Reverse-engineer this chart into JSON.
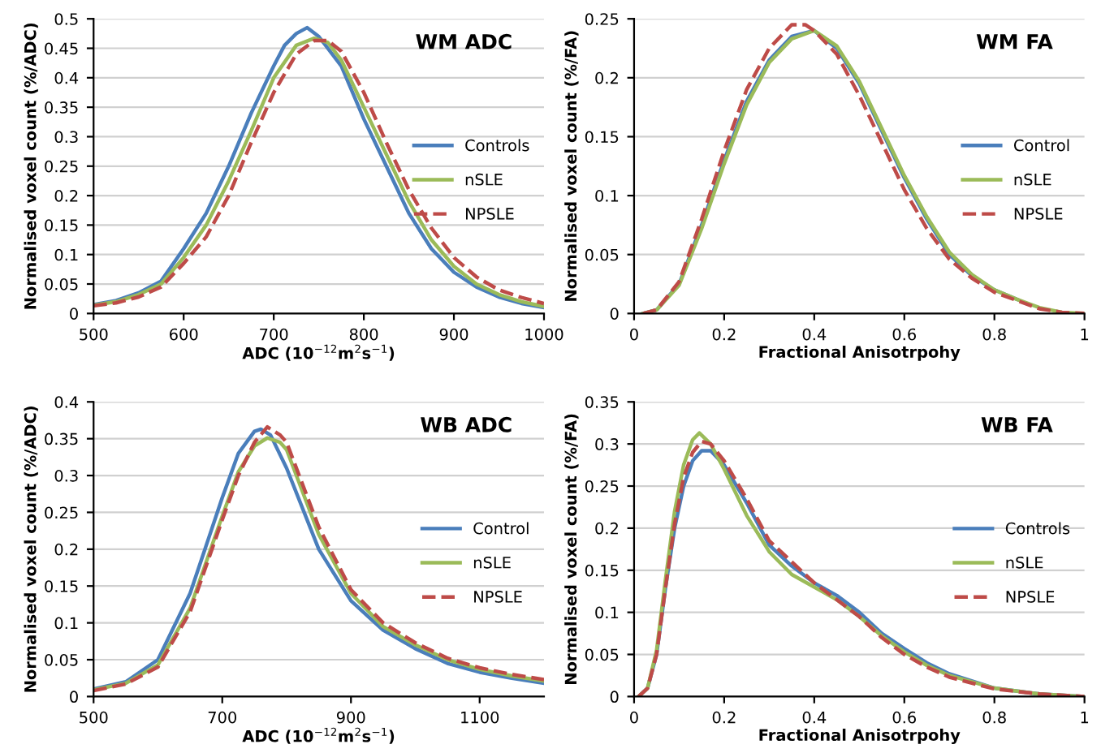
{
  "chart_data": [
    {
      "type": "line",
      "title": "WM ADC",
      "xlabel": "ADC (10$^{−12}$m$^{2}$s$^{−1}$)",
      "ylabel": "Normalised voxel count (%/ADC)",
      "xlim": [
        500,
        1000
      ],
      "xticks": [
        500,
        600,
        700,
        800,
        900,
        1000
      ],
      "ylim": [
        0,
        0.5
      ],
      "yticks": [
        0,
        0.05,
        0.1,
        0.15,
        0.2,
        0.25,
        0.3,
        0.35,
        0.4,
        0.45,
        0.5
      ],
      "grid": "y",
      "legend": "right",
      "series": [
        {
          "name": "Controls",
          "color": "#4a7ebb",
          "line_style": "solid",
          "x": [
            500,
            525,
            550,
            575,
            600,
            625,
            650,
            675,
            700,
            712,
            725,
            737,
            750,
            775,
            800,
            825,
            850,
            875,
            900,
            925,
            950,
            975,
            1000
          ],
          "values": [
            0.015,
            0.022,
            0.035,
            0.055,
            0.11,
            0.17,
            0.25,
            0.34,
            0.42,
            0.455,
            0.475,
            0.485,
            0.47,
            0.42,
            0.33,
            0.25,
            0.17,
            0.11,
            0.07,
            0.045,
            0.028,
            0.017,
            0.01
          ]
        },
        {
          "name": "nSLE",
          "color": "#9bbb59",
          "line_style": "solid",
          "x": [
            500,
            525,
            550,
            575,
            600,
            625,
            650,
            675,
            700,
            725,
            745,
            760,
            775,
            800,
            825,
            850,
            875,
            900,
            925,
            950,
            975,
            1000
          ],
          "values": [
            0.014,
            0.02,
            0.032,
            0.05,
            0.095,
            0.15,
            0.225,
            0.31,
            0.4,
            0.455,
            0.467,
            0.46,
            0.43,
            0.35,
            0.27,
            0.19,
            0.125,
            0.08,
            0.05,
            0.032,
            0.02,
            0.012
          ]
        },
        {
          "name": "NPSLE",
          "color": "#be4b48",
          "line_style": "dashed",
          "x": [
            500,
            525,
            550,
            575,
            600,
            625,
            650,
            675,
            700,
            725,
            745,
            760,
            775,
            800,
            825,
            850,
            875,
            900,
            925,
            950,
            975,
            1000
          ],
          "values": [
            0.013,
            0.018,
            0.028,
            0.045,
            0.085,
            0.13,
            0.2,
            0.29,
            0.375,
            0.44,
            0.463,
            0.463,
            0.445,
            0.375,
            0.29,
            0.21,
            0.145,
            0.095,
            0.062,
            0.04,
            0.027,
            0.017
          ]
        }
      ]
    },
    {
      "type": "line",
      "title": "WM FA",
      "xlabel": "Fractional Anisotrpohy",
      "ylabel": "Normalised voxel count (%/FA)",
      "xlim": [
        0,
        1
      ],
      "xticks": [
        0,
        0.2,
        0.4,
        0.6,
        0.8,
        1
      ],
      "ylim": [
        0,
        0.25
      ],
      "yticks": [
        0,
        0.05,
        0.1,
        0.15,
        0.2,
        0.25
      ],
      "grid": "y",
      "legend": "right",
      "series": [
        {
          "name": "Control",
          "color": "#4a7ebb",
          "line_style": "solid",
          "x": [
            0.02,
            0.05,
            0.1,
            0.15,
            0.2,
            0.25,
            0.3,
            0.35,
            0.4,
            0.45,
            0.5,
            0.55,
            0.6,
            0.65,
            0.7,
            0.75,
            0.8,
            0.85
          ],
          "values": [
            0,
            0.003,
            0.025,
            0.075,
            0.13,
            0.18,
            0.215,
            0.235,
            0.24,
            0.225,
            0.195,
            0.155,
            0.115,
            0.08,
            0.05,
            0.032,
            0.02,
            0.012
          ]
        },
        {
          "name": "nSLE",
          "color": "#9bbb59",
          "line_style": "solid",
          "x": [
            0.02,
            0.05,
            0.1,
            0.15,
            0.2,
            0.25,
            0.3,
            0.35,
            0.4,
            0.45,
            0.5,
            0.55,
            0.6,
            0.65,
            0.7,
            0.75,
            0.8,
            0.85,
            0.9,
            0.95,
            1
          ],
          "values": [
            0,
            0.003,
            0.024,
            0.072,
            0.127,
            0.177,
            0.213,
            0.233,
            0.24,
            0.227,
            0.197,
            0.157,
            0.117,
            0.082,
            0.052,
            0.033,
            0.02,
            0.012,
            0.005,
            0.001,
            0
          ]
        },
        {
          "name": "NPSLE",
          "color": "#be4b48",
          "line_style": "dashed",
          "x": [
            0.02,
            0.05,
            0.1,
            0.15,
            0.2,
            0.25,
            0.3,
            0.35,
            0.38,
            0.4,
            0.45,
            0.5,
            0.55,
            0.6,
            0.65,
            0.7,
            0.75,
            0.8,
            0.85,
            0.9,
            0.95,
            1
          ],
          "values": [
            0,
            0.003,
            0.027,
            0.08,
            0.138,
            0.19,
            0.225,
            0.245,
            0.245,
            0.24,
            0.22,
            0.185,
            0.145,
            0.105,
            0.072,
            0.046,
            0.03,
            0.018,
            0.011,
            0.004,
            0.001,
            0
          ]
        }
      ]
    },
    {
      "type": "line",
      "title": "WB ADC",
      "xlabel": "ADC (10$^{−12}$m$^{2}$s$^{−1}$)",
      "ylabel": "Normalised voxel count (%/ADC)",
      "xlim": [
        500,
        1200
      ],
      "xticks": [
        500,
        700,
        900,
        1100
      ],
      "ylim": [
        0,
        0.4
      ],
      "yticks": [
        0,
        0.05,
        0.1,
        0.15,
        0.2,
        0.25,
        0.3,
        0.35,
        0.4
      ],
      "grid": "y",
      "legend": "right",
      "series": [
        {
          "name": "Control",
          "color": "#4a7ebb",
          "line_style": "solid",
          "x": [
            500,
            550,
            600,
            650,
            700,
            725,
            750,
            760,
            775,
            800,
            850,
            900,
            950,
            1000,
            1050,
            1100,
            1150,
            1200
          ],
          "values": [
            0.01,
            0.02,
            0.05,
            0.14,
            0.27,
            0.33,
            0.36,
            0.363,
            0.355,
            0.31,
            0.2,
            0.13,
            0.09,
            0.065,
            0.045,
            0.033,
            0.025,
            0.018
          ]
        },
        {
          "name": "nSLE",
          "color": "#9bbb59",
          "line_style": "solid",
          "x": [
            500,
            550,
            600,
            650,
            700,
            725,
            750,
            770,
            790,
            800,
            850,
            900,
            950,
            1000,
            1050,
            1100,
            1150,
            1200
          ],
          "values": [
            0.009,
            0.018,
            0.043,
            0.12,
            0.245,
            0.305,
            0.34,
            0.351,
            0.345,
            0.335,
            0.22,
            0.14,
            0.095,
            0.07,
            0.05,
            0.037,
            0.028,
            0.021
          ]
        },
        {
          "name": "NPSLE",
          "color": "#be4b48",
          "line_style": "dashed",
          "x": [
            500,
            550,
            600,
            650,
            700,
            725,
            750,
            770,
            790,
            800,
            850,
            900,
            950,
            1000,
            1050,
            1100,
            1150,
            1200
          ],
          "values": [
            0.008,
            0.017,
            0.04,
            0.115,
            0.24,
            0.3,
            0.345,
            0.366,
            0.355,
            0.345,
            0.23,
            0.145,
            0.1,
            0.073,
            0.052,
            0.039,
            0.03,
            0.023
          ]
        }
      ]
    },
    {
      "type": "line",
      "title": "WB FA",
      "xlabel": "Fractional Anisotrpohy",
      "ylabel": "Normalised voxel count (%/FA)",
      "xlim": [
        0,
        1
      ],
      "xticks": [
        0,
        0.2,
        0.4,
        0.6,
        0.8,
        1
      ],
      "ylim": [
        0,
        0.35
      ],
      "yticks": [
        0,
        0.05,
        0.1,
        0.15,
        0.2,
        0.25,
        0.3,
        0.35
      ],
      "grid": "y",
      "legend": "right",
      "series": [
        {
          "name": "Controls",
          "color": "#4a7ebb",
          "line_style": "solid",
          "x": [
            0.01,
            0.03,
            0.05,
            0.07,
            0.09,
            0.11,
            0.13,
            0.15,
            0.17,
            0.2,
            0.25,
            0.3,
            0.35,
            0.4,
            0.45,
            0.5,
            0.55,
            0.6,
            0.65,
            0.7,
            0.8,
            0.9,
            1
          ],
          "values": [
            0,
            0.01,
            0.05,
            0.13,
            0.2,
            0.25,
            0.28,
            0.292,
            0.292,
            0.275,
            0.23,
            0.18,
            0.155,
            0.135,
            0.12,
            0.1,
            0.075,
            0.057,
            0.04,
            0.027,
            0.01,
            0.003,
            0
          ]
        },
        {
          "name": "nSLE",
          "color": "#9bbb59",
          "line_style": "solid",
          "x": [
            0.01,
            0.03,
            0.05,
            0.07,
            0.09,
            0.11,
            0.13,
            0.145,
            0.17,
            0.2,
            0.25,
            0.3,
            0.35,
            0.4,
            0.45,
            0.5,
            0.55,
            0.6,
            0.65,
            0.7,
            0.8,
            0.9,
            1
          ],
          "values": [
            0,
            0.01,
            0.055,
            0.14,
            0.22,
            0.275,
            0.305,
            0.313,
            0.3,
            0.27,
            0.215,
            0.172,
            0.145,
            0.13,
            0.115,
            0.095,
            0.072,
            0.053,
            0.037,
            0.025,
            0.01,
            0.003,
            0
          ]
        },
        {
          "name": "NPSLE",
          "color": "#be4b48",
          "line_style": "dashed",
          "x": [
            0.01,
            0.03,
            0.05,
            0.07,
            0.09,
            0.11,
            0.13,
            0.15,
            0.17,
            0.2,
            0.25,
            0.3,
            0.35,
            0.4,
            0.45,
            0.5,
            0.55,
            0.6,
            0.65,
            0.7,
            0.8,
            0.9,
            1
          ],
          "values": [
            0,
            0.01,
            0.05,
            0.13,
            0.205,
            0.26,
            0.29,
            0.303,
            0.3,
            0.28,
            0.235,
            0.185,
            0.16,
            0.135,
            0.115,
            0.095,
            0.07,
            0.05,
            0.035,
            0.023,
            0.009,
            0.003,
            0
          ]
        }
      ]
    }
  ]
}
